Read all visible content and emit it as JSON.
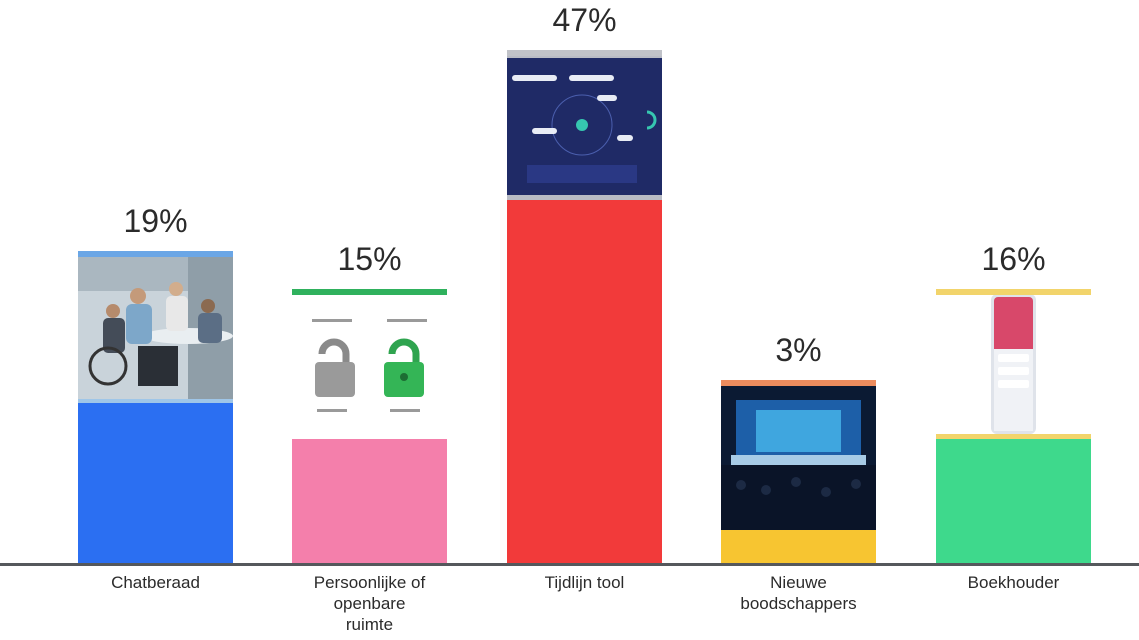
{
  "chart_data": {
    "type": "bar",
    "categories": [
      "Chatberaad",
      "Persoonlijke of openbare ruimte",
      "Tijdlijn tool",
      "Nieuwe boodschappers",
      "Boekhouder"
    ],
    "category_lines": [
      [
        "Chatberaad"
      ],
      [
        "Persoonlijke of",
        "openbare",
        "ruimte"
      ],
      [
        "Tijdlijn tool"
      ],
      [
        "Nieuwe",
        "boodschappers"
      ],
      [
        "Boekhouder"
      ]
    ],
    "values": [
      19,
      15,
      47,
      3,
      16
    ],
    "value_labels": [
      "19%",
      "15%",
      "47%",
      "3%",
      "16%"
    ],
    "colors": [
      "#2b6ff2",
      "#f47fab",
      "#f23a3a",
      "#f7c531",
      "#3ed98c"
    ],
    "image_icons": [
      "meeting-photo",
      "lock-illustration",
      "timeline-screenshot",
      "theater-photo",
      "phone-screenshot"
    ]
  }
}
